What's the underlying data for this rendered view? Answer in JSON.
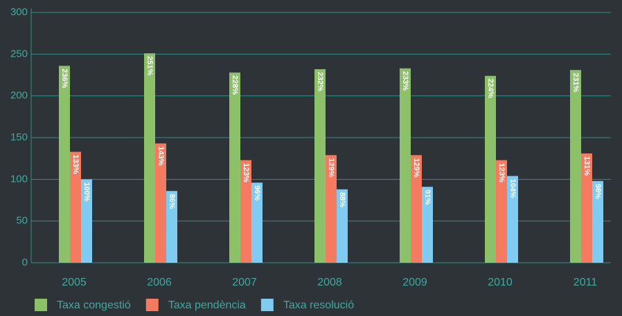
{
  "chart_data": {
    "type": "bar",
    "categories": [
      "2005",
      "2006",
      "2007",
      "2008",
      "2009",
      "2010",
      "2011"
    ],
    "series": [
      {
        "name": "Taxa congestió",
        "color": "#8cc16a",
        "values": [
          236,
          251,
          228,
          232,
          233,
          224,
          231
        ],
        "value_labels": [
          "236%",
          "251%",
          "228%",
          "232%",
          "233%",
          "224%",
          "231%"
        ]
      },
      {
        "name": "Taxa pendència",
        "color": "#f47b5f",
        "values": [
          133,
          143,
          123,
          129,
          129,
          123,
          131
        ],
        "value_labels": [
          "133%",
          "143%",
          "123%",
          "129%",
          "129%",
          "123%",
          "131%"
        ]
      },
      {
        "name": "Taxa resolució",
        "color": "#7fcbf1",
        "values": [
          100,
          86,
          96,
          88,
          91,
          104,
          98
        ],
        "value_labels": [
          "100%",
          "86%",
          "96%",
          "88%",
          "91%",
          "104%",
          "98%"
        ]
      }
    ],
    "ylim": [
      0,
      300
    ],
    "yticks": [
      0,
      50,
      100,
      150,
      200,
      250,
      300
    ],
    "grid": true,
    "legend": "bottom"
  }
}
